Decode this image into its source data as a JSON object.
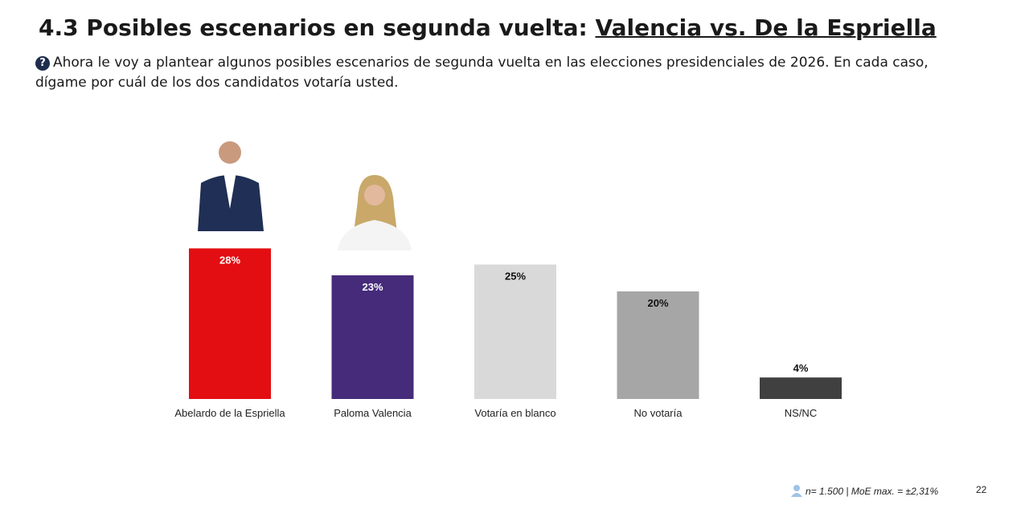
{
  "header": {
    "title": "4.3 Posibles escenarios en segunda vuelta: ",
    "title_underlined": "Valencia vs. De la Espriella",
    "question": "Ahora le voy a plantear algunos posibles escenarios de segunda vuelta en las elecciones presidenciales de 2026. En cada caso, dígame por cuál de los dos candidatos votaría usted."
  },
  "chart_data": {
    "type": "bar",
    "categories": [
      "Abelardo de la Espriella",
      "Paloma Valencia",
      "Votaría en blanco",
      "No votaría",
      "NS/NC"
    ],
    "values": [
      28,
      23,
      25,
      20,
      4
    ],
    "value_labels": [
      "28%",
      "23%",
      "25%",
      "20%",
      "4%"
    ],
    "colors": [
      "#e30e12",
      "#452b7a",
      "#d9d9d9",
      "#a6a6a6",
      "#404040"
    ]
  },
  "footer": {
    "note": "n= 1.500 | MoE max. = ±2,31%",
    "page": "22"
  }
}
